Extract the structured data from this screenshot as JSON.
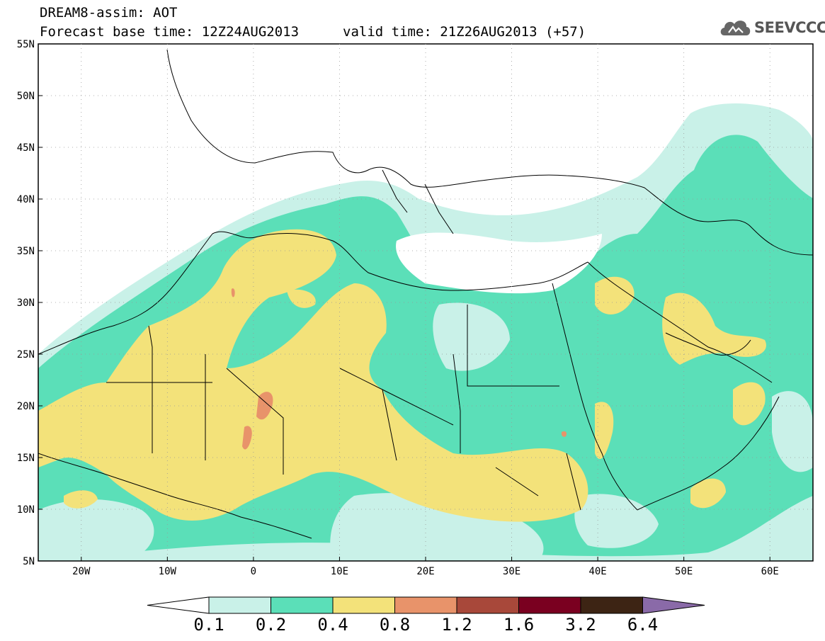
{
  "header": {
    "line1": "DREAM8-assim: AOT",
    "line2": "Forecast base time: 12Z24AUG2013",
    "line3": "valid time: 21Z26AUG2013 (+57)"
  },
  "logo": {
    "text": "SEEVCCC",
    "icon": "cloud-icon"
  },
  "map": {
    "lon_range": [
      -25,
      65
    ],
    "lat_range": [
      5,
      55
    ],
    "lat_ticks": [
      "5N",
      "10N",
      "15N",
      "20N",
      "25N",
      "30N",
      "35N",
      "40N",
      "45N",
      "50N",
      "55N"
    ],
    "lon_ticks": [
      "20W",
      "10W",
      "0",
      "10E",
      "20E",
      "30E",
      "40E",
      "50E",
      "60E"
    ]
  },
  "colorbar": {
    "labels": [
      "0.1",
      "0.2",
      "0.4",
      "0.8",
      "1.2",
      "1.6",
      "3.2",
      "6.4"
    ],
    "colors": [
      "#ffffff",
      "#c9f1e8",
      "#5bdfb8",
      "#f3e27a",
      "#e8936a",
      "#a8483a",
      "#7a0020",
      "#3d2414",
      "#8a6aa8"
    ]
  }
}
